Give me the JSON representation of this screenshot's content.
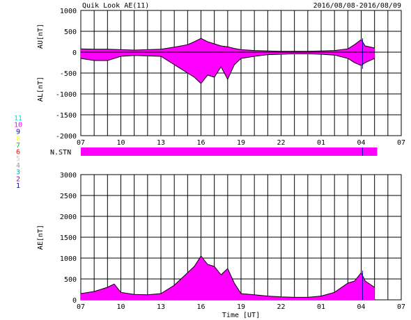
{
  "header": {
    "title": "Quik Look AE(11)",
    "date_range": "2016/08/08-2016/08/09"
  },
  "colors": {
    "fill": "#ff00ff",
    "line": "#000000",
    "grid": "#000000",
    "marker": "#0000aa",
    "background": "#ffffff"
  },
  "station_legend": [
    {
      "label": "11",
      "color": "#00e0e0"
    },
    {
      "label": "10",
      "color": "#ff00ff"
    },
    {
      "label": "9",
      "color": "#0000ff"
    },
    {
      "label": "8",
      "color": "#ffff00"
    },
    {
      "label": "7",
      "color": "#00cc00"
    },
    {
      "label": "6",
      "color": "#ff0000"
    },
    {
      "label": "5",
      "color": "#cccccc"
    },
    {
      "label": "4",
      "color": "#999999"
    },
    {
      "label": "3",
      "color": "#00aaaa"
    },
    {
      "label": "2",
      "color": "#aa00aa"
    },
    {
      "label": "1",
      "color": "#0000cc"
    }
  ],
  "stn_label": "N.STN",
  "x_tick_labels": [
    "07",
    "10",
    "13",
    "16",
    "19",
    "22",
    "01",
    "04",
    "07"
  ],
  "x_label": "Time [UT]",
  "chart_data": [
    {
      "type": "area",
      "name": "AU/AL",
      "ylabel_top": "AU[nT]",
      "ylabel_bottom": "AL[nT]",
      "ylim": [
        -2000,
        1000
      ],
      "yticks": [
        1000,
        500,
        0,
        -500,
        -1000,
        -1500,
        -2000
      ],
      "x_hours": [
        7,
        8,
        9,
        10,
        11,
        12,
        13,
        14,
        15,
        15.5,
        16,
        16.5,
        17,
        17.5,
        18,
        18.5,
        19,
        20,
        21,
        22,
        23,
        24,
        25,
        26,
        27,
        27.5,
        28,
        28.3,
        29
      ],
      "au": [
        80,
        70,
        70,
        60,
        50,
        60,
        70,
        120,
        180,
        250,
        330,
        250,
        200,
        150,
        130,
        90,
        60,
        40,
        30,
        20,
        20,
        20,
        30,
        40,
        80,
        180,
        300,
        150,
        100
      ],
      "al": [
        -150,
        -200,
        -200,
        -100,
        -80,
        -90,
        -100,
        -300,
        -500,
        -600,
        -750,
        -550,
        -600,
        -350,
        -650,
        -300,
        -150,
        -100,
        -60,
        -50,
        -40,
        -40,
        -50,
        -70,
        -150,
        -250,
        -320,
        -250,
        -150
      ],
      "grid": true
    },
    {
      "type": "area",
      "name": "AE",
      "ylabel": "AE[nT]",
      "ylim": [
        0,
        3000
      ],
      "yticks": [
        3000,
        2500,
        2000,
        1500,
        1000,
        500,
        0
      ],
      "x_hours": [
        7,
        8,
        9,
        9.5,
        10,
        11,
        12,
        13,
        14,
        15,
        15.5,
        16,
        16.5,
        17,
        17.5,
        18,
        18.5,
        19,
        20,
        21,
        22,
        23,
        24,
        25,
        26,
        27,
        27.5,
        28,
        28.3,
        29
      ],
      "ae": [
        150,
        200,
        300,
        380,
        180,
        130,
        120,
        150,
        350,
        650,
        800,
        1050,
        850,
        800,
        600,
        750,
        400,
        150,
        120,
        90,
        70,
        60,
        60,
        90,
        180,
        400,
        450,
        650,
        450,
        300
      ],
      "grid": true
    }
  ]
}
